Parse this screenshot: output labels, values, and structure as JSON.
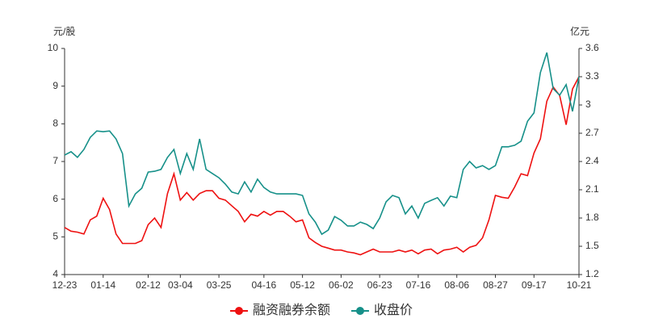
{
  "chart_data": {
    "type": "line",
    "y_label": "元/股",
    "y2_label": "亿元",
    "categories": [
      "12-23",
      null,
      null,
      null,
      null,
      null,
      "01-14",
      null,
      null,
      null,
      null,
      null,
      null,
      "02-12",
      null,
      null,
      null,
      null,
      "03-04",
      null,
      null,
      null,
      null,
      null,
      "03-25",
      null,
      null,
      null,
      null,
      null,
      null,
      "04-16",
      null,
      null,
      null,
      null,
      null,
      "05-12",
      null,
      null,
      null,
      null,
      null,
      "06-02",
      null,
      null,
      null,
      null,
      null,
      "06-23",
      null,
      null,
      null,
      null,
      null,
      "07-16",
      null,
      null,
      null,
      null,
      null,
      "08-06",
      null,
      null,
      null,
      null,
      null,
      "08-27",
      null,
      null,
      null,
      null,
      null,
      "09-17",
      null,
      null,
      null,
      null,
      null,
      null,
      "10-21"
    ],
    "series": [
      {
        "name": "融资融券余额",
        "color": "#ee1111",
        "axis": "y2",
        "values": [
          1.7,
          1.66,
          1.65,
          1.63,
          1.78,
          1.82,
          2.01,
          1.89,
          1.63,
          1.53,
          1.53,
          1.53,
          1.56,
          1.73,
          1.8,
          1.7,
          2.06,
          2.27,
          1.99,
          2.07,
          1.99,
          2.06,
          2.09,
          2.09,
          2.01,
          1.99,
          1.93,
          1.87,
          1.76,
          1.84,
          1.82,
          1.87,
          1.83,
          1.87,
          1.87,
          1.82,
          1.76,
          1.78,
          1.59,
          1.54,
          1.5,
          1.48,
          1.46,
          1.46,
          1.44,
          1.43,
          1.41,
          1.44,
          1.47,
          1.44,
          1.44,
          1.44,
          1.46,
          1.44,
          1.46,
          1.42,
          1.46,
          1.47,
          1.42,
          1.46,
          1.47,
          1.49,
          1.44,
          1.49,
          1.51,
          1.59,
          1.78,
          2.04,
          2.02,
          2.01,
          2.13,
          2.27,
          2.25,
          2.49,
          2.64,
          3.04,
          3.19,
          3.1,
          2.79,
          3.17,
          3.3
        ]
      },
      {
        "name": "收盘价",
        "color": "#169089",
        "values": [
          7.17,
          7.26,
          7.11,
          7.32,
          7.64,
          7.81,
          7.79,
          7.81,
          7.6,
          7.21,
          5.82,
          6.14,
          6.29,
          6.72,
          6.74,
          6.79,
          7.11,
          7.32,
          6.68,
          7.21,
          6.79,
          7.6,
          6.79,
          6.68,
          6.57,
          6.4,
          6.19,
          6.14,
          6.46,
          6.19,
          6.53,
          6.31,
          6.19,
          6.14,
          6.14,
          6.14,
          6.14,
          6.1,
          5.61,
          5.39,
          5.07,
          5.18,
          5.54,
          5.44,
          5.29,
          5.29,
          5.39,
          5.33,
          5.22,
          5.5,
          5.93,
          6.1,
          6.04,
          5.61,
          5.82,
          5.5,
          5.89,
          5.97,
          6.04,
          5.82,
          6.08,
          6.04,
          6.79,
          7.0,
          6.83,
          6.89,
          6.79,
          6.89,
          7.39,
          7.39,
          7.43,
          7.54,
          8.07,
          8.29,
          9.36,
          9.89,
          8.93,
          8.76,
          9.04,
          8.33,
          9.25
        ]
      }
    ],
    "ylim": [
      4,
      10
    ],
    "yticks": [
      4,
      5,
      6,
      7,
      8,
      9,
      10
    ],
    "y2lim": [
      1.2,
      3.6
    ],
    "y2ticks": [
      1.2,
      1.5,
      1.8,
      2.1,
      2.4,
      2.7,
      3,
      3.3,
      3.6
    ]
  }
}
